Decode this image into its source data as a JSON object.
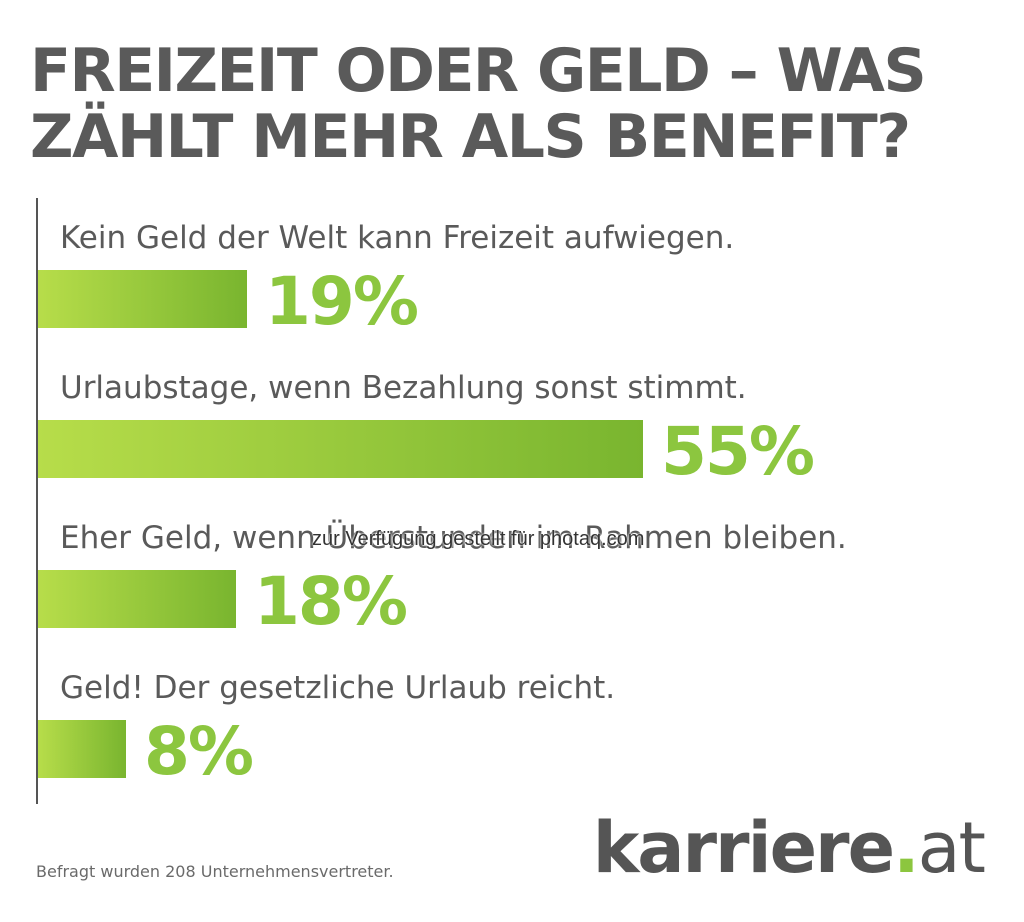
{
  "chart_data": {
    "type": "bar",
    "orientation": "horizontal",
    "title": "FREIZEIT ODER GELD – WAS ZÄHLT MEHR ALS BENEFIT?",
    "categories": [
      "Kein Geld der Welt kann Freizeit aufwiegen.",
      "Urlaubstage, wenn Bezahlung sonst stimmt.",
      "Eher Geld, wenn Überstunden im Rahmen bleiben.",
      "Geld! Der gesetzliche Urlaub reicht."
    ],
    "values": [
      19,
      55,
      18,
      8
    ],
    "value_labels": [
      "19%",
      "55%",
      "18%",
      "8%"
    ],
    "xlim": [
      0,
      100
    ],
    "grid": false,
    "legend": "none",
    "bar_color": "#8cc63f"
  },
  "footnote": "Befragt wurden 208 Unternehmensvertreter.",
  "logo": {
    "name": "karriere",
    "dot": ".",
    "tld": "at"
  },
  "watermark": "zur Verfügung gestellt für photaq.com",
  "colors": {
    "text": "#5a5a5a",
    "accent": "#8cc63f",
    "axis": "#555555"
  }
}
